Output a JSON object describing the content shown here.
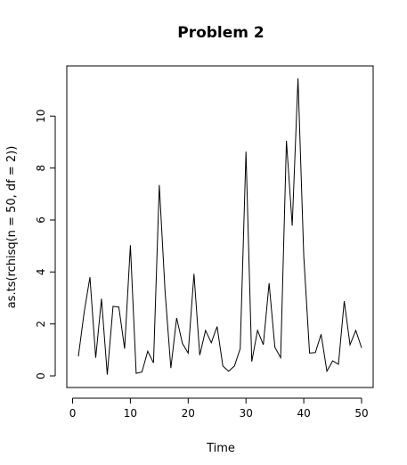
{
  "chart_data": {
    "type": "line",
    "title": "Problem 2",
    "xlabel": "Time",
    "ylabel": "as.ts(rchisq(n = 50, df = 2))",
    "xlim": [
      1,
      50
    ],
    "ylim": [
      0,
      11.45
    ],
    "xticks": [
      0,
      10,
      20,
      30,
      40,
      50
    ],
    "yticks": [
      0,
      2,
      4,
      6,
      8,
      10
    ],
    "grid": false,
    "legend": "none",
    "line_color": "#000000",
    "series": [
      {
        "x": [
          1,
          2,
          3,
          4,
          5,
          6,
          7,
          8,
          9,
          10,
          11,
          12,
          13,
          14,
          15,
          16,
          17,
          18,
          19,
          20,
          21,
          22,
          23,
          24,
          25,
          26,
          27,
          28,
          29,
          30,
          31,
          32,
          33,
          34,
          35,
          36,
          37,
          38,
          39,
          40,
          41,
          42,
          43,
          44,
          45,
          46,
          47,
          48,
          49,
          50
        ],
        "values": [
          0.75,
          2.45,
          3.8,
          0.7,
          2.97,
          0.05,
          2.68,
          2.65,
          1.05,
          5.03,
          0.1,
          0.15,
          0.95,
          0.5,
          7.35,
          3.25,
          0.3,
          2.23,
          1.25,
          0.88,
          3.93,
          0.8,
          1.75,
          1.28,
          1.9,
          0.38,
          0.18,
          0.38,
          1.05,
          8.63,
          0.55,
          1.75,
          1.2,
          3.57,
          1.1,
          0.7,
          9.05,
          5.78,
          11.45,
          4.6,
          0.88,
          0.9,
          1.6,
          0.18,
          0.58,
          0.45,
          2.88,
          1.2,
          1.75,
          1.08
        ]
      }
    ]
  }
}
